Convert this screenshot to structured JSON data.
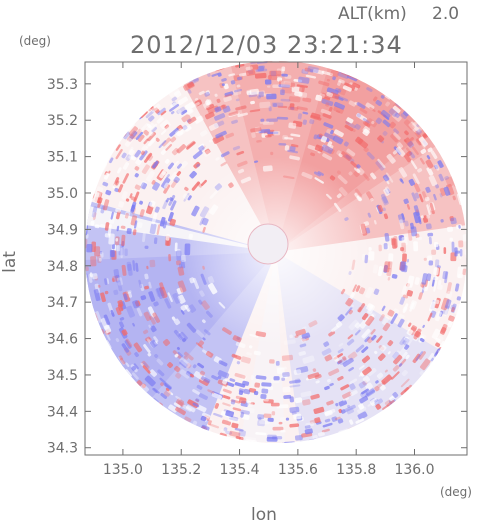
{
  "header": {
    "altitude_label": "ALT(km)",
    "altitude_value": "2.0",
    "timestamp": "2012/12/03 23:21:34"
  },
  "chart_data": {
    "type": "heatmap",
    "title": "2012/12/03 23:21:34",
    "xlabel": "lon",
    "ylabel": "lat",
    "x_unit": "(deg)",
    "y_unit": "(deg)",
    "xlim": [
      134.87,
      136.18
    ],
    "ylim": [
      34.28,
      35.36
    ],
    "x_ticks": [
      "135.0",
      "135.2",
      "135.4",
      "135.6",
      "135.8",
      "136.0"
    ],
    "y_ticks": [
      "35.3",
      "35.2",
      "35.1",
      "35.0",
      "34.9",
      "34.8",
      "34.7",
      "34.6",
      "34.5",
      "34.4",
      "34.3"
    ],
    "radar_center": {
      "lon": 135.52,
      "lat": 34.82
    },
    "colors": {
      "positive": "#f26b6b",
      "negative": "#7a7af2",
      "neutral": "#ffffff",
      "axis": "#6e6e6e"
    },
    "grid": false
  }
}
